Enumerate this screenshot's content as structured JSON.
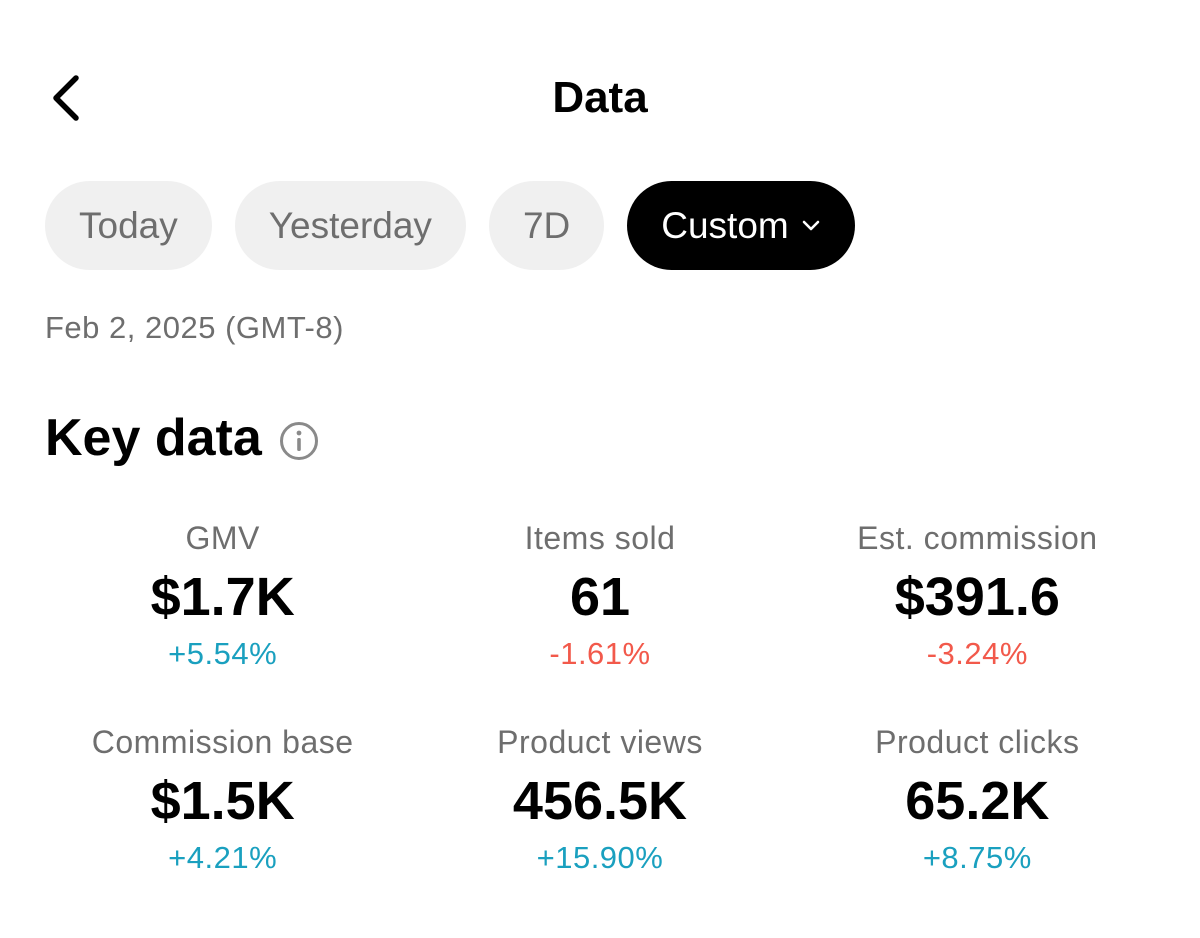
{
  "header": {
    "title": "Data",
    "back_icon": "chevron-left-icon"
  },
  "tabs": [
    {
      "label": "Today",
      "active": false
    },
    {
      "label": "Yesterday",
      "active": false
    },
    {
      "label": "7D",
      "active": false
    },
    {
      "label": "Custom",
      "active": true
    }
  ],
  "date_label": "Feb 2, 2025 (GMT-8)",
  "key_data": {
    "title": "Key data",
    "metrics": [
      {
        "label": "GMV",
        "value": "$1.7K",
        "change": "+5.54%",
        "trend": "up"
      },
      {
        "label": "Items sold",
        "value": "61",
        "change": "-1.61%",
        "trend": "down"
      },
      {
        "label": "Est. commission",
        "value": "$391.6",
        "change": "-3.24%",
        "trend": "down"
      },
      {
        "label": "Commission base",
        "value": "$1.5K",
        "change": "+4.21%",
        "trend": "up"
      },
      {
        "label": "Product views",
        "value": "456.5K",
        "change": "+15.90%",
        "trend": "up"
      },
      {
        "label": "Product clicks",
        "value": "65.2K",
        "change": "+8.75%",
        "trend": "up"
      }
    ]
  },
  "colors": {
    "up": "#1aa0bf",
    "down": "#f2594b",
    "active_tab_bg": "#000000",
    "tab_bg": "#f0f0f0"
  }
}
